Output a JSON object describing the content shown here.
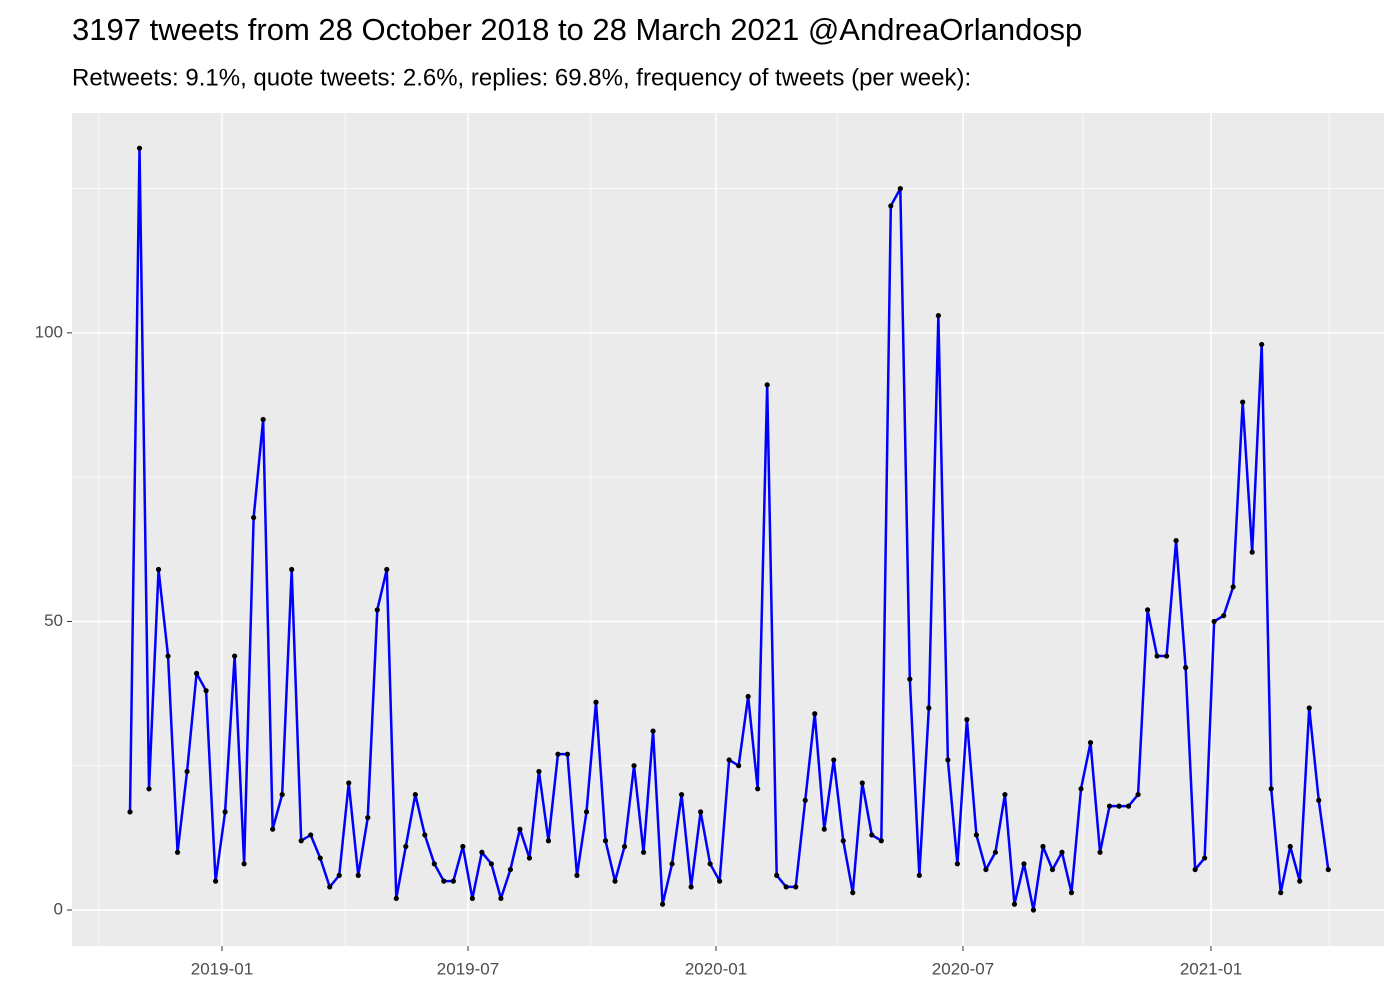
{
  "chart_data": {
    "type": "line",
    "title": "3197 tweets from 28 October 2018 to 28 March 2021 @AndreaOrlandosp",
    "subtitle": "Retweets: 9.1%, quote tweets: 2.6%, replies: 69.8%, frequency of tweets (per week):",
    "x": [
      0,
      1,
      2,
      3,
      4,
      5,
      6,
      7,
      8,
      9,
      10,
      11,
      12,
      13,
      14,
      15,
      16,
      17,
      18,
      19,
      20,
      21,
      22,
      23,
      24,
      25,
      26,
      27,
      28,
      29,
      30,
      31,
      32,
      33,
      34,
      35,
      36,
      37,
      38,
      39,
      40,
      41,
      42,
      43,
      44,
      45,
      46,
      47,
      48,
      49,
      50,
      51,
      52,
      53,
      54,
      55,
      56,
      57,
      58,
      59,
      60,
      61,
      62,
      63,
      64,
      65,
      66,
      67,
      68,
      69,
      70,
      71,
      72,
      73,
      74,
      75,
      76,
      77,
      78,
      79,
      80,
      81,
      82,
      83,
      84,
      85,
      86,
      87,
      88,
      89,
      90,
      91,
      92,
      93,
      94,
      95,
      96,
      97,
      98,
      99,
      100,
      101,
      102,
      103,
      104,
      105,
      106,
      107,
      108,
      109,
      110,
      111,
      112,
      113,
      114,
      115,
      116,
      117,
      118,
      119,
      120,
      121,
      122,
      123,
      124,
      125,
      126
    ],
    "series": [
      {
        "color": "#0000ff",
        "point_color": "#000000",
        "values": [
          17,
          132,
          21,
          59,
          44,
          10,
          24,
          41,
          38,
          5,
          17,
          44,
          8,
          68,
          85,
          14,
          20,
          59,
          12,
          13,
          9,
          4,
          6,
          22,
          6,
          16,
          52,
          59,
          2,
          11,
          20,
          13,
          8,
          5,
          5,
          11,
          2,
          10,
          8,
          2,
          7,
          14,
          9,
          24,
          12,
          27,
          27,
          6,
          17,
          36,
          12,
          5,
          11,
          25,
          10,
          31,
          1,
          8,
          20,
          4,
          17,
          8,
          5,
          26,
          25,
          37,
          21,
          91,
          6,
          4,
          4,
          19,
          34,
          14,
          26,
          12,
          3,
          22,
          13,
          12,
          122,
          125,
          40,
          6,
          35,
          103,
          26,
          8,
          33,
          13,
          7,
          10,
          20,
          1,
          8,
          0,
          11,
          7,
          10,
          3,
          21,
          29,
          10,
          18,
          18,
          18,
          20,
          52,
          44,
          44,
          64,
          42,
          7,
          9,
          50,
          51,
          56,
          88,
          62,
          98,
          21,
          3,
          11,
          5,
          35,
          19,
          7
        ]
      }
    ],
    "xlim": [
      -6.1,
      131.86
    ],
    "xticks": [
      {
        "value": 9.67,
        "label": "2019-01"
      },
      {
        "value": 35.54,
        "label": "2019-07"
      },
      {
        "value": 61.62,
        "label": "2020-01"
      },
      {
        "value": 87.59,
        "label": "2020-07"
      },
      {
        "value": 113.67,
        "label": "2021-01"
      }
    ],
    "ylim": [
      -6.24,
      138.1
    ],
    "yticks": [
      0,
      50,
      100
    ],
    "grid": true
  }
}
